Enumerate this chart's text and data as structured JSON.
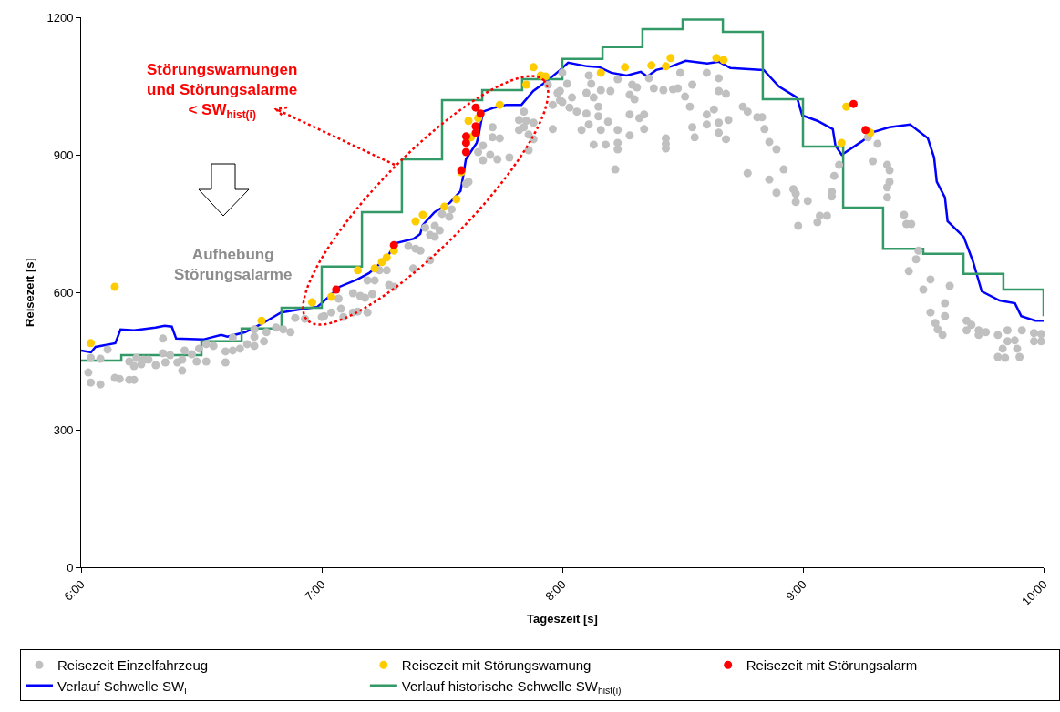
{
  "chart_data": {
    "type": "scatter",
    "xlabel": "Tageszeit [s]",
    "ylabel": "Reisezeit [s]",
    "annotations": [
      "Störungswarnungen\nund Störungsalarme\n< SW$_{hist(i)}$",
      "Aufhebung\nStörungsalarme"
    ],
    "xlim": [
      6,
      10
    ],
    "xticks": [
      {
        "value": 6,
        "label": "6:00"
      },
      {
        "value": 7,
        "label": "7:00"
      },
      {
        "value": 8,
        "label": "8:00"
      },
      {
        "value": 9,
        "label": "9:00"
      },
      {
        "value": 10,
        "label": "10:00"
      }
    ],
    "ylim": [
      0,
      1200
    ],
    "yticks": [
      0,
      300,
      600,
      900,
      1200
    ],
    "legend": "bottom",
    "series": [
      {
        "name": "Reisezeit Einzelfahrzeug",
        "marker": "circle",
        "color": "#c0c0c0",
        "x": [
          6.03,
          6.04,
          6.08,
          6.04,
          6.08,
          6.11,
          6.14,
          6.16,
          6.2,
          6.22,
          6.2,
          6.22,
          6.23,
          6.25,
          6.26,
          6.28,
          6.31,
          6.34,
          6.35,
          6.34,
          6.37,
          6.4,
          6.42,
          6.42,
          6.43,
          6.46,
          6.48,
          6.49,
          6.52,
          6.52,
          6.55,
          6.6,
          6.6,
          6.63,
          6.63,
          6.66,
          6.69,
          6.72,
          6.72,
          6.72,
          6.76,
          6.77,
          6.81,
          6.84,
          6.87,
          6.89,
          6.93,
          7.0,
          7.04,
          7.08,
          7.09,
          7.07,
          7.01,
          7.13,
          7.15,
          7.19,
          7.13,
          7.16,
          7.18,
          7.21,
          7.19,
          7.22,
          7.24,
          7.27,
          7.28,
          7.3,
          7.38,
          7.45,
          7.36,
          7.39,
          7.41,
          7.43,
          7.47,
          7.49,
          7.45,
          7.47,
          7.5,
          7.53,
          7.54,
          7.6,
          7.61,
          7.65,
          7.67,
          7.67,
          7.71,
          7.71,
          7.74,
          7.7,
          7.73,
          7.78,
          7.84,
          7.82,
          7.85,
          7.84,
          7.82,
          7.88,
          7.86,
          7.86,
          7.88,
          7.96,
          7.96,
          7.94,
          7.98,
          7.99,
          8.0,
          7.99,
          8.0,
          8.02,
          8.03,
          8.04,
          8.06,
          8.08,
          8.1,
          8.11,
          8.11,
          8.12,
          8.1,
          8.13,
          8.13,
          8.15,
          8.15,
          8.16,
          8.16,
          8.18,
          8.19,
          8.2,
          8.23,
          8.23,
          8.23,
          8.22,
          8.23,
          8.28,
          8.28,
          8.28,
          8.29,
          8.3,
          8.31,
          8.32,
          8.34,
          8.34,
          8.36,
          8.38,
          8.42,
          8.43,
          8.43,
          8.43,
          8.46,
          8.48,
          8.49,
          8.51,
          8.53,
          8.54,
          8.54,
          8.55,
          8.6,
          8.6,
          8.6,
          8.63,
          8.65,
          8.65,
          8.65,
          8.65,
          8.68,
          8.69,
          8.68,
          8.75,
          8.77,
          8.81,
          8.83,
          8.84,
          8.86,
          8.89,
          8.77,
          8.92,
          8.86,
          8.89,
          8.96,
          8.97,
          8.97,
          9.02,
          8.98,
          9.06,
          9.07,
          9.1,
          9.12,
          9.12,
          9.13,
          9.15,
          9.27,
          9.31,
          9.29,
          9.35,
          9.36,
          9.36,
          9.35,
          9.35,
          9.42,
          9.43,
          9.45,
          9.48,
          9.47,
          9.44,
          9.53,
          9.5,
          9.61,
          9.59,
          9.53,
          9.59,
          9.55,
          9.56,
          9.58,
          9.68,
          9.7,
          9.68,
          9.73,
          9.76,
          9.73,
          9.81,
          9.85,
          9.85,
          9.88,
          9.91,
          9.96,
          9.96,
          9.99,
          9.99,
          9.83,
          9.89,
          9.81,
          9.84,
          9.9
        ],
        "values": [
          425,
          403,
          399,
          457,
          455,
          475,
          413,
          411,
          409,
          409,
          449,
          439,
          457,
          443,
          453,
          453,
          441,
          499,
          447,
          467,
          463,
          447,
          429,
          453,
          473,
          465,
          449,
          477,
          449,
          487,
          483,
          447,
          471,
          473,
          501,
          477,
          487,
          483,
          503,
          519,
          493,
          513,
          523,
          519,
          513,
          544,
          542,
          546,
          556,
          564,
          546,
          586,
          548,
          556,
          558,
          556,
          598,
          592,
          588,
          596,
          626,
          626,
          648,
          648,
          616,
          612,
          652,
          670,
          701,
          695,
          691,
          741,
          745,
          735,
          725,
          721,
          771,
          765,
          781,
          837,
          841,
          906,
          920,
          888,
          960,
          938,
          936,
          900,
          890,
          894,
          994,
          976,
          974,
          960,
          954,
          970,
          944,
          910,
          934,
          956,
          1009,
          1053,
          1035,
          1019,
          1079,
          1039,
          1015,
          1055,
          1003,
          1025,
          994,
          954,
          990,
          966,
          1073,
          1055,
          1035,
          1025,
          922,
          1005,
          984,
          1041,
          954,
          922,
          972,
          1039,
          954,
          926,
          912,
          868,
          1065,
          988,
          942,
          1031,
          1053,
          1021,
          1047,
          980,
          988,
          956,
          1067,
          1045,
          1041,
          936,
          924,
          914,
          1043,
          1045,
          1079,
          1027,
          1005,
          1053,
          960,
          938,
          1079,
          988,
          966,
          999,
          1067,
          1039,
          970,
          948,
          1033,
          976,
          934,
          1005,
          994,
          982,
          982,
          956,
          928,
          912,
          860,
          868,
          846,
          817,
          825,
          815,
          797,
          799,
          745,
          753,
          767,
          767,
          819,
          809,
          854,
          878,
          938,
          924,
          886,
          878,
          866,
          841,
          829,
          807,
          769,
          749,
          749,
          691,
          672,
          646,
          628,
          606,
          614,
          576,
          556,
          548,
          533,
          519,
          507,
          538,
          529,
          517,
          517,
          513,
          507,
          507,
          517,
          493,
          495,
          517,
          511,
          493,
          509,
          493,
          477,
          477,
          459,
          457,
          459
        ]
      },
      {
        "name": "Reisezeit mit Störungswarnung",
        "marker": "circle",
        "color": "#ffcc00",
        "x": [
          6.04,
          6.14,
          6.75,
          6.96,
          7.04,
          7.15,
          7.22,
          7.25,
          7.27,
          7.3,
          7.39,
          7.42,
          7.51,
          7.56,
          7.58,
          7.61,
          7.62,
          7.65,
          7.74,
          7.85,
          7.88,
          7.91,
          7.93,
          8.16,
          8.26,
          8.37,
          8.43,
          8.45,
          8.64,
          8.67,
          9.18,
          9.16,
          9.28
        ],
        "values": [
          489,
          612,
          538,
          578,
          590,
          648,
          652,
          666,
          676,
          691,
          755,
          769,
          787,
          803,
          862,
          974,
          938,
          980,
          1009,
          1053,
          1091,
          1073,
          1071,
          1079,
          1091,
          1095,
          1093,
          1111,
          1111,
          1107,
          1005,
          926,
          948
        ]
      },
      {
        "name": "Reisezeit mit Störungsalarm",
        "marker": "circle",
        "color": "#ff0000",
        "x": [
          7.06,
          7.3,
          7.58,
          7.6,
          7.6,
          7.6,
          7.64,
          7.64,
          7.66,
          7.64,
          9.21,
          9.26
        ],
        "values": [
          606,
          703,
          866,
          906,
          926,
          940,
          948,
          962,
          990,
          1003,
          1011,
          954
        ]
      },
      {
        "name": "Verlauf Schwelle SW$_{i}$",
        "type": "line",
        "color": "#0000ff",
        "x": [
          6.0,
          6.041,
          6.06,
          6.142,
          6.164,
          6.22,
          6.309,
          6.347,
          6.377,
          6.395,
          6.507,
          6.582,
          6.608,
          6.682,
          6.757,
          6.831,
          6.906,
          6.981,
          6.999,
          7.074,
          7.148,
          7.197,
          7.271,
          7.308,
          7.383,
          7.409,
          7.42,
          7.469,
          7.532,
          7.577,
          7.588,
          7.599,
          7.644,
          7.651,
          7.67,
          7.718,
          7.767,
          7.83,
          7.879,
          7.931,
          7.991,
          8.024,
          8.103,
          8.155,
          8.203,
          8.267,
          8.326,
          8.353,
          8.39,
          8.453,
          8.513,
          8.602,
          8.651,
          8.699,
          8.837,
          8.9,
          8.975,
          8.997,
          9.06,
          9.124,
          9.135,
          9.161,
          9.247,
          9.295,
          9.359,
          9.445,
          9.519,
          9.545,
          9.556,
          9.59,
          9.601,
          9.668,
          9.706,
          9.743,
          9.817,
          9.881,
          9.907,
          9.966,
          10.0
        ],
        "values": [
          473,
          469,
          481,
          489,
          519,
          517,
          523,
          527,
          525,
          499,
          497,
          507,
          503,
          513,
          533,
          556,
          562,
          568,
          576,
          612,
          628,
          642,
          676,
          707,
          717,
          727,
          747,
          775,
          795,
          821,
          854,
          890,
          926,
          940,
          994,
          1003,
          1009,
          1009,
          1039,
          1059,
          1085,
          1101,
          1093,
          1091,
          1079,
          1073,
          1081,
          1071,
          1085,
          1093,
          1105,
          1099,
          1103,
          1089,
          1085,
          1049,
          1025,
          986,
          974,
          956,
          920,
          900,
          930,
          950,
          960,
          966,
          936,
          894,
          841,
          807,
          755,
          721,
          668,
          602,
          582,
          576,
          548,
          538,
          538
        ]
      },
      {
        "name": "Verlauf historische Schwelle SW$_{hist(i)}$",
        "type": "step",
        "color": "#339966",
        "x": [
          6.0,
          6.167,
          6.5,
          6.667,
          6.833,
          7.0,
          7.167,
          7.333,
          7.5,
          7.667,
          7.833,
          8.0,
          8.167,
          8.333,
          8.5,
          8.667,
          8.833,
          9.0,
          9.167,
          9.333,
          9.5,
          9.667,
          9.833,
          10.0
        ],
        "values": [
          451,
          463,
          493,
          521,
          566,
          656,
          775,
          890,
          1019,
          1041,
          1065,
          1109,
          1135,
          1174,
          1195,
          1168,
          1021,
          918,
          785,
          695,
          684,
          640,
          606,
          548
        ]
      }
    ]
  }
}
